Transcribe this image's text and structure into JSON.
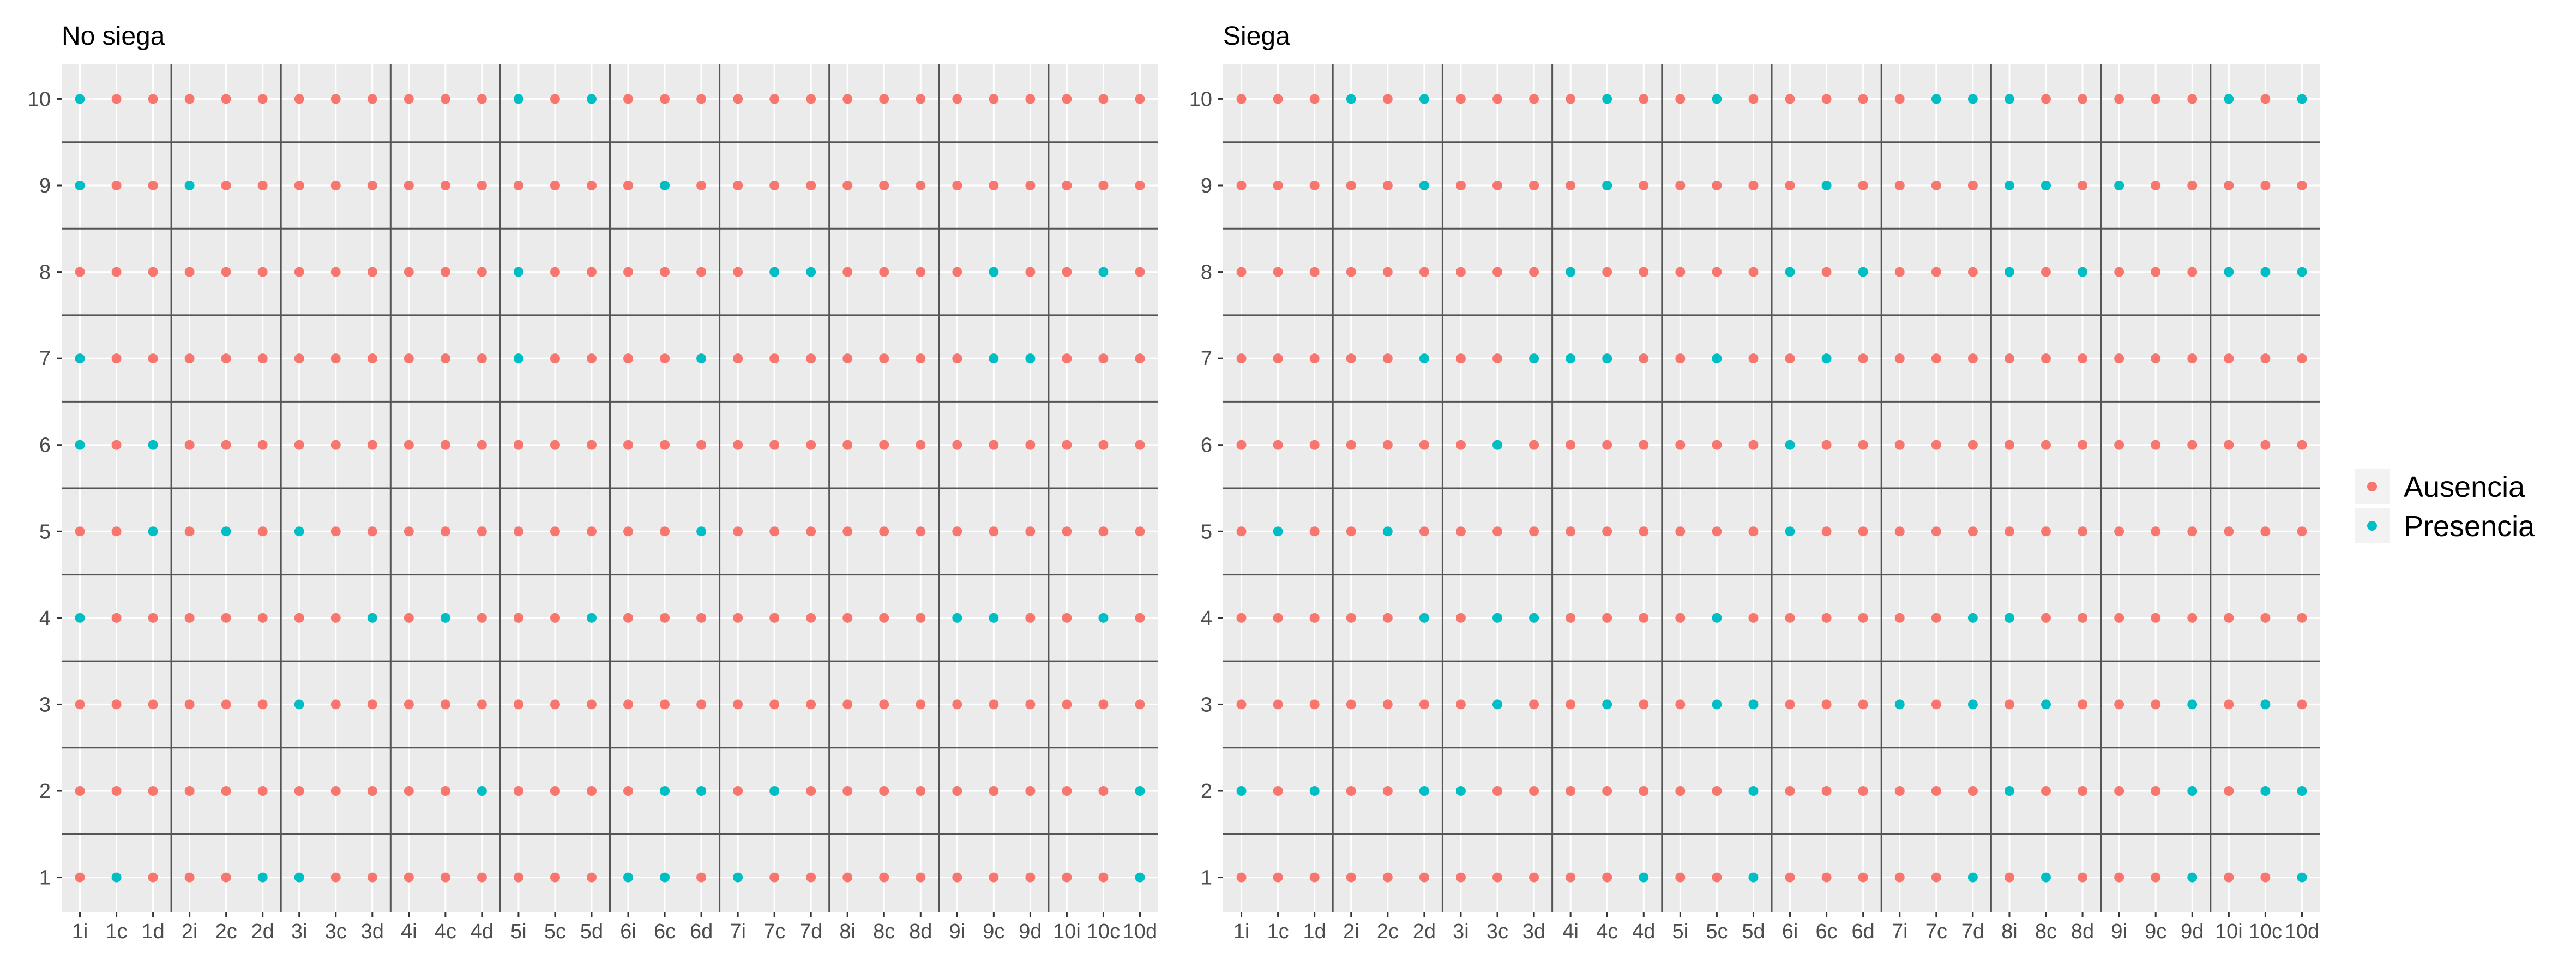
{
  "chart_data": [
    {
      "type": "scatter",
      "title": "No siega",
      "categories": [
        "1i",
        "1c",
        "1d",
        "2i",
        "2c",
        "2d",
        "3i",
        "3c",
        "3d",
        "4i",
        "4c",
        "4d",
        "5i",
        "5c",
        "5d",
        "6i",
        "6c",
        "6d",
        "7i",
        "7c",
        "7d",
        "8i",
        "8c",
        "8d",
        "9i",
        "9c",
        "9d",
        "10i",
        "10c",
        "10d"
      ],
      "y_ticks": [
        1,
        2,
        3,
        4,
        5,
        6,
        7,
        8,
        9,
        10
      ],
      "ylim": [
        0.6,
        10.4
      ],
      "presencia": {
        "10": [
          "1i",
          "5i",
          "5d"
        ],
        "9": [
          "1i",
          "2i",
          "6c"
        ],
        "8": [
          "5i",
          "7c",
          "7d",
          "9c",
          "10c"
        ],
        "7": [
          "1i",
          "5i",
          "6d",
          "9c",
          "9d"
        ],
        "6": [
          "1i",
          "1d"
        ],
        "5": [
          "1d",
          "2c",
          "3i",
          "6d"
        ],
        "4": [
          "1i",
          "3d",
          "4c",
          "5d",
          "9i",
          "9c",
          "10c"
        ],
        "3": [
          "3i"
        ],
        "2": [
          "4d",
          "6c",
          "6d",
          "7c",
          "10d"
        ],
        "1": [
          "1c",
          "2d",
          "3i",
          "6i",
          "6c",
          "7i",
          "10d"
        ]
      }
    },
    {
      "type": "scatter",
      "title": "Siega",
      "categories": [
        "1i",
        "1c",
        "1d",
        "2i",
        "2c",
        "2d",
        "3i",
        "3c",
        "3d",
        "4i",
        "4c",
        "4d",
        "5i",
        "5c",
        "5d",
        "6i",
        "6c",
        "6d",
        "7i",
        "7c",
        "7d",
        "8i",
        "8c",
        "8d",
        "9i",
        "9c",
        "9d",
        "10i",
        "10c",
        "10d"
      ],
      "y_ticks": [
        1,
        2,
        3,
        4,
        5,
        6,
        7,
        8,
        9,
        10
      ],
      "ylim": [
        0.6,
        10.4
      ],
      "presencia": {
        "10": [
          "2i",
          "2d",
          "4c",
          "5c",
          "7c",
          "7d",
          "8i",
          "10i",
          "10d"
        ],
        "9": [
          "2d",
          "4c",
          "6c",
          "8i",
          "8c",
          "9i"
        ],
        "8": [
          "4i",
          "6i",
          "6d",
          "8i",
          "8d",
          "10i",
          "10c",
          "10d"
        ],
        "7": [
          "2d",
          "3d",
          "4i",
          "4c",
          "5c",
          "6c"
        ],
        "6": [
          "3c",
          "6i"
        ],
        "5": [
          "1c",
          "2c",
          "6i"
        ],
        "4": [
          "2d",
          "3c",
          "3d",
          "5c",
          "7d",
          "8i"
        ],
        "3": [
          "3c",
          "4c",
          "5c",
          "5d",
          "7i",
          "7d",
          "8c",
          "9d",
          "10c"
        ],
        "2": [
          "1i",
          "1d",
          "2d",
          "3i",
          "5d",
          "8i",
          "9d",
          "10c",
          "10d"
        ],
        "1": [
          "4d",
          "5d",
          "7d",
          "8c",
          "9d",
          "10d"
        ]
      }
    }
  ],
  "legend": {
    "items": [
      {
        "label": "Ausencia",
        "color": "#F8766D"
      },
      {
        "label": "Presencia",
        "color": "#00BFC4"
      }
    ]
  },
  "colors": {
    "ausencia": "#F8766D",
    "presencia": "#00BFC4",
    "panel_bg": "#EBEBEB",
    "grid": "#FFFFFF",
    "separator": "#555555"
  }
}
